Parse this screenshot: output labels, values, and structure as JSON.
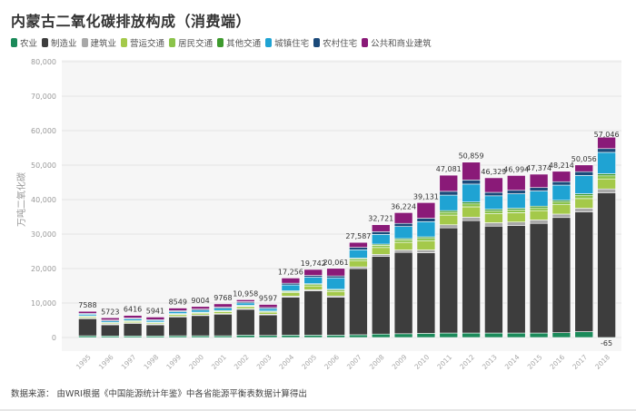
{
  "title": "内蒙古二氧化碳排放构成（消费端）",
  "footer": {
    "label": "数据来源：",
    "text": "由WRI根据《中国能源统计年鉴》中各省能源平衡表数据计算得出"
  },
  "chart_data": {
    "type": "bar",
    "stacked": true,
    "title": "内蒙古二氧化碳排放构成（消费端）",
    "xlabel": "",
    "ylabel": "万吨二氧化碳",
    "ylim": [
      0,
      80000
    ],
    "yticks": [
      0,
      10000,
      20000,
      30000,
      40000,
      50000,
      60000,
      70000,
      80000
    ],
    "ytick_labels": [
      "0",
      "10,000",
      "20,000",
      "30,000",
      "40,000",
      "50,000",
      "60,000",
      "70,000",
      "80,000"
    ],
    "grid": true,
    "legend_position": "top-left",
    "categories": [
      "1995",
      "1996",
      "1997",
      "1998",
      "1999",
      "2000",
      "2001",
      "2002",
      "2003",
      "2004",
      "2005",
      "2006",
      "2007",
      "2008",
      "2009",
      "2010",
      "2011",
      "2012",
      "2013",
      "2014",
      "2015",
      "2016",
      "2017",
      "2018"
    ],
    "totals": [
      7588,
      5723,
      6416,
      5941,
      8549,
      9004,
      9768,
      10958,
      9597,
      17256,
      19742,
      20061,
      27587,
      32721,
      36224,
      39131,
      47081,
      50859,
      46329,
      46994,
      47374,
      48214,
      50056,
      57046
    ],
    "total_labels": [
      "7588",
      "5723",
      "6416",
      "5941",
      "8549",
      "9004",
      "9768",
      "10,958",
      "9597",
      "17,256",
      "19,742",
      "20,061",
      "27,587",
      "32,721",
      "36,224",
      "39,131",
      "47,081",
      "50,859",
      "46,329",
      "46,994",
      "47,374",
      "48,214",
      "50,056",
      "57,046"
    ],
    "annotations": [
      {
        "category": "2018",
        "series": "农业",
        "text": "-65"
      }
    ],
    "series": [
      {
        "name": "农业",
        "color": "#1b8a5a",
        "values": [
          500,
          450,
          450,
          450,
          500,
          500,
          500,
          700,
          600,
          700,
          700,
          700,
          800,
          1000,
          1100,
          1200,
          1300,
          1300,
          1300,
          1300,
          1300,
          1400,
          1700,
          -65
        ]
      },
      {
        "name": "制造业",
        "color": "#3d3d3d",
        "values": [
          5000,
          3300,
          3700,
          3300,
          5500,
          5900,
          6300,
          7500,
          6000,
          11000,
          12800,
          11000,
          19200,
          22500,
          23600,
          23400,
          30500,
          32600,
          31000,
          31200,
          31800,
          33400,
          34700,
          42000
        ]
      },
      {
        "name": "建筑业",
        "color": "#a8a8a8",
        "values": [
          150,
          120,
          130,
          120,
          150,
          150,
          160,
          180,
          160,
          300,
          350,
          350,
          500,
          600,
          700,
          800,
          900,
          1000,
          1000,
          1000,
          1000,
          1000,
          1100,
          1100
        ]
      },
      {
        "name": "营运交通",
        "color": "#a4c94a",
        "values": [
          400,
          350,
          400,
          380,
          500,
          500,
          550,
          600,
          600,
          1000,
          1100,
          1300,
          1700,
          2000,
          2200,
          2600,
          2800,
          3000,
          2600,
          2700,
          2700,
          2700,
          2800,
          2900
        ]
      },
      {
        "name": "居民交通",
        "color": "#8bc34a",
        "values": [
          150,
          130,
          150,
          140,
          180,
          180,
          200,
          220,
          200,
          350,
          400,
          400,
          550,
          650,
          700,
          750,
          800,
          850,
          800,
          800,
          800,
          800,
          850,
          900
        ]
      },
      {
        "name": "其他交通",
        "color": "#3e9a2e",
        "values": [
          100,
          90,
          100,
          90,
          120,
          120,
          130,
          140,
          130,
          200,
          250,
          250,
          300,
          350,
          400,
          450,
          500,
          550,
          500,
          500,
          500,
          500,
          550,
          600
        ]
      },
      {
        "name": "城镇住宅",
        "color": "#1fa3d3",
        "values": [
          450,
          400,
          480,
          460,
          550,
          600,
          650,
          700,
          680,
          1700,
          1900,
          3300,
          2400,
          2800,
          3500,
          4400,
          4500,
          5200,
          3900,
          4200,
          4400,
          4400,
          5300,
          6200
        ]
      },
      {
        "name": "农村住宅",
        "color": "#1b4a7a",
        "values": [
          250,
          230,
          250,
          240,
          300,
          300,
          330,
          350,
          330,
          500,
          500,
          560,
          700,
          800,
          900,
          1000,
          1100,
          1200,
          1000,
          1000,
          1000,
          1000,
          1100,
          1100
        ]
      },
      {
        "name": "公共和商业建筑",
        "color": "#8a1a78",
        "values": [
          588,
          653,
          756,
          761,
          749,
          754,
          948,
          568,
          897,
          1506,
          1742,
          2201,
          1437,
          2021,
          3124,
          4531,
          4681,
          5159,
          4229,
          4294,
          3874,
          3014,
          1956,
          3311
        ]
      }
    ]
  }
}
